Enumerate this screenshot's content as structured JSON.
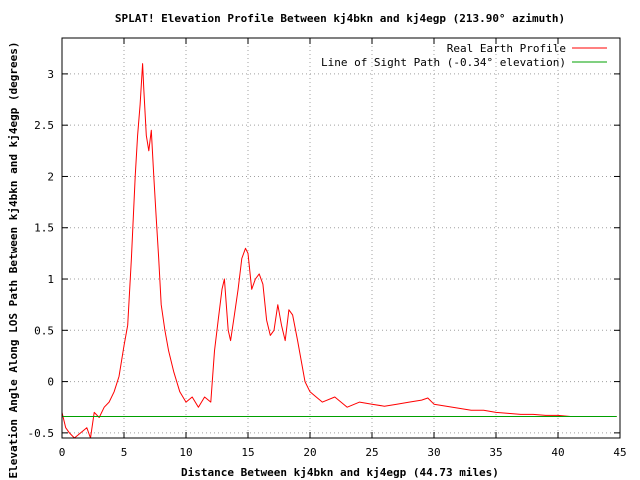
{
  "chart_data": {
    "type": "line",
    "title": "SPLAT! Elevation Profile Between kj4bkn and kj4egp (213.90° azimuth)",
    "xlabel": "Distance Between kj4bkn and kj4egp (44.73 miles)",
    "ylabel": "Elevation Angle Along LOS Path Between kj4bkn and kj4egp (degrees)",
    "xlim": [
      0,
      45
    ],
    "ylim": [
      -0.55,
      3.35
    ],
    "xticks": [
      0,
      5,
      10,
      15,
      20,
      25,
      30,
      35,
      40,
      45
    ],
    "xtick_labels": [
      "0",
      "5",
      "10",
      "15",
      "20",
      "25",
      "30",
      "35",
      "40",
      "45"
    ],
    "yticks": [
      -0.5,
      0,
      0.5,
      1,
      1.5,
      2,
      2.5,
      3
    ],
    "ytick_labels": [
      "-0.5",
      "0",
      "0.5",
      "1",
      "1.5",
      "2",
      "2.5",
      "3"
    ],
    "grid": true,
    "legend_position": "top-right",
    "series": [
      {
        "name": "Real Earth Profile",
        "color": "#ff0000",
        "x": [
          0,
          0.3,
          0.6,
          1.0,
          1.5,
          2.0,
          2.3,
          2.6,
          3.0,
          3.4,
          3.8,
          4.2,
          4.6,
          5.0,
          5.3,
          5.6,
          5.9,
          6.1,
          6.3,
          6.5,
          6.6,
          6.8,
          7.0,
          7.2,
          7.4,
          7.6,
          7.8,
          8.0,
          8.3,
          8.6,
          9.0,
          9.5,
          10.0,
          10.5,
          11.0,
          11.5,
          12.0,
          12.3,
          12.6,
          12.9,
          13.1,
          13.4,
          13.6,
          13.9,
          14.2,
          14.5,
          14.8,
          15.0,
          15.3,
          15.6,
          15.9,
          16.2,
          16.5,
          16.8,
          17.1,
          17.4,
          17.7,
          18.0,
          18.3,
          18.6,
          19.0,
          19.3,
          19.6,
          20.0,
          20.5,
          21.0,
          22.0,
          23.0,
          24.0,
          25.0,
          26.0,
          27.0,
          28.0,
          29.0,
          29.5,
          30.0,
          31.0,
          32.0,
          33.0,
          34.0,
          35.0,
          36.0,
          37.0,
          38.0,
          39.0,
          40.0,
          41.0,
          42.0,
          43.0,
          44.0,
          44.73
        ],
        "y": [
          -0.3,
          -0.45,
          -0.5,
          -0.55,
          -0.5,
          -0.45,
          -0.55,
          -0.3,
          -0.35,
          -0.25,
          -0.2,
          -0.1,
          0.05,
          0.35,
          0.55,
          1.2,
          2.0,
          2.4,
          2.7,
          3.1,
          2.85,
          2.4,
          2.25,
          2.45,
          2.0,
          1.6,
          1.2,
          0.75,
          0.5,
          0.3,
          0.1,
          -0.1,
          -0.2,
          -0.15,
          -0.25,
          -0.15,
          -0.2,
          0.3,
          0.6,
          0.9,
          1.0,
          0.5,
          0.4,
          0.65,
          0.9,
          1.2,
          1.3,
          1.25,
          0.9,
          1.0,
          1.05,
          0.95,
          0.6,
          0.45,
          0.5,
          0.75,
          0.55,
          0.4,
          0.7,
          0.65,
          0.4,
          0.2,
          0.0,
          -0.1,
          -0.15,
          -0.2,
          -0.15,
          -0.25,
          -0.2,
          -0.22,
          -0.24,
          -0.22,
          -0.2,
          -0.18,
          -0.16,
          -0.22,
          -0.24,
          -0.26,
          -0.28,
          -0.28,
          -0.3,
          -0.31,
          -0.32,
          -0.32,
          -0.33,
          -0.33,
          -0.34,
          -0.34,
          -0.34,
          -0.34,
          -0.34
        ]
      },
      {
        "name": "Line of Sight Path (-0.34° elevation)",
        "color": "#00a000",
        "x": [
          0,
          44.73
        ],
        "y": [
          -0.34,
          -0.34
        ]
      }
    ]
  }
}
